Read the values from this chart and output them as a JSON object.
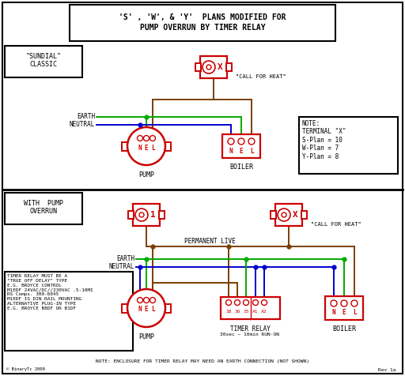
{
  "bg_color": "#ffffff",
  "border_color": "#000000",
  "red": "#cc0000",
  "brown": "#7B3F00",
  "green": "#00aa00",
  "blue": "#0000cc",
  "orange": "#cc6600",
  "title1": "'S' , 'W', & 'Y'  PLANS MODIFIED FOR",
  "title2": "PUMP OVERRUN BY TIMER RELAY",
  "sundial_label": "\"SUNDIAL\"\nCLASSIC",
  "with_pump_label": "WITH  PUMP\nOVERRUN",
  "note_text": "NOTE:\nTERMINAL \"X\"\nS-Plan = 10\nW-Plan = 7\nY-Plan = 8",
  "timer_note": "TIMER RELAY MUST BE A\n\"TRUE OFF DELAY\" TYPE\nE.G. BROYCE CONTROL\nM1EDF 24VAC/DC//230VAC .5-10MI\nRS Comps. 300-6045\nM1EDF IS DIN RAIL MOUNTING\nALTERNATIVE PLUG-IN TYPE\nE.G. BROYCE B8DF OR B1DF",
  "bottom_note": "NOTE: ENCLOSURE FOR TIMER RELAY MAY NEED AN EARTH CONNECTION (NOT SHOWN)",
  "credits": "© BinaryTc 2009",
  "rev": "Rev 1a"
}
